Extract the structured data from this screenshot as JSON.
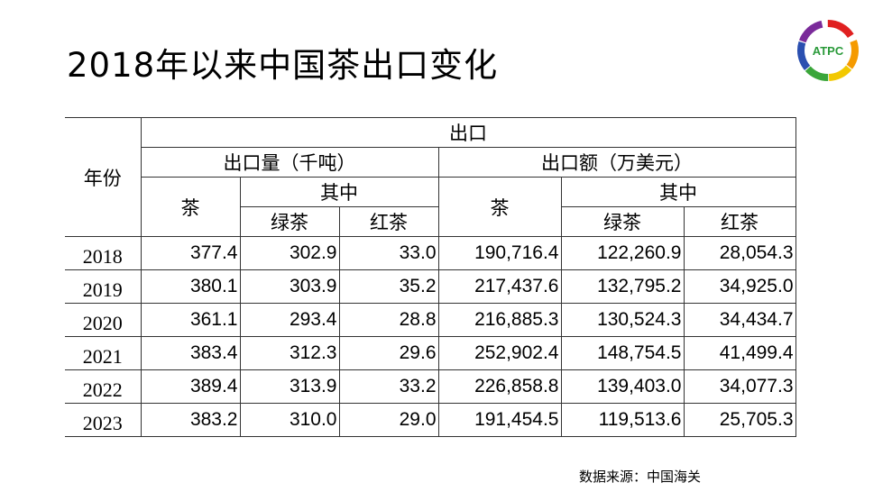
{
  "title": "2018年以来中国茶出口变化",
  "logo": {
    "text": "ATPC"
  },
  "table": {
    "year_header": "年份",
    "export_header": "出口",
    "volume_header": "出口量（千吨）",
    "value_header": "出口额（万美元）",
    "tea": "茶",
    "of_which": "其中",
    "green_tea": "绿茶",
    "black_tea": "红茶",
    "rows": [
      {
        "year": "2018",
        "vol_tea": "377.4",
        "vol_green": "302.9",
        "vol_black": "33.0",
        "val_tea": "190,716.4",
        "val_green": "122,260.9",
        "val_black": "28,054.3"
      },
      {
        "year": "2019",
        "vol_tea": "380.1",
        "vol_green": "303.9",
        "vol_black": "35.2",
        "val_tea": "217,437.6",
        "val_green": "132,795.2",
        "val_black": "34,925.0"
      },
      {
        "year": "2020",
        "vol_tea": "361.1",
        "vol_green": "293.4",
        "vol_black": "28.8",
        "val_tea": "216,885.3",
        "val_green": "130,524.3",
        "val_black": "34,434.7"
      },
      {
        "year": "2021",
        "vol_tea": "383.4",
        "vol_green": "312.3",
        "vol_black": "29.6",
        "val_tea": "252,902.4",
        "val_green": "148,754.5",
        "val_black": "41,499.4"
      },
      {
        "year": "2022",
        "vol_tea": "389.4",
        "vol_green": "313.9",
        "vol_black": "33.2",
        "val_tea": "226,858.8",
        "val_green": "139,403.0",
        "val_black": "34,077.3"
      },
      {
        "year": "2023",
        "vol_tea": "383.2",
        "vol_green": "310.0",
        "vol_black": "29.0",
        "val_tea": "191,454.5",
        "val_green": "119,513.6",
        "val_black": "25,705.3"
      }
    ]
  },
  "source": "数据来源：中国海关"
}
